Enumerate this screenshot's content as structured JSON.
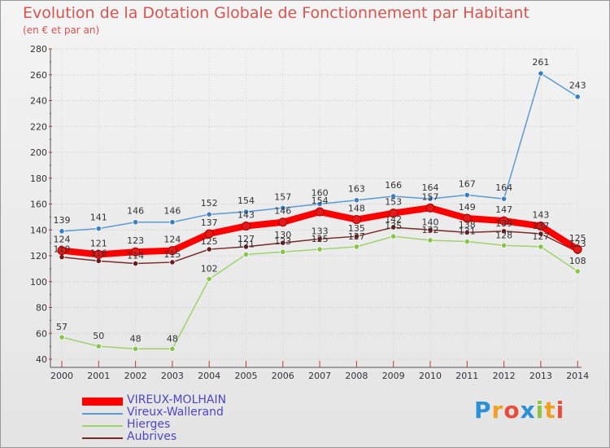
{
  "chart_data": {
    "type": "line",
    "title": "Evolution de la Dotation Globale de Fonctionnement par Habitant",
    "subtitle": "(en € et par an)",
    "xlabel": "",
    "ylabel": "",
    "ylim": [
      40,
      280
    ],
    "yticks": [
      40,
      60,
      80,
      100,
      120,
      140,
      160,
      180,
      200,
      220,
      240,
      260,
      280
    ],
    "x": [
      "2000",
      "2001",
      "2002",
      "2003",
      "2004",
      "2005",
      "2006",
      "2007",
      "2008",
      "2009",
      "2010",
      "2011",
      "2012",
      "2013",
      "2014"
    ],
    "grid": true,
    "legend_position": "bottom-left",
    "series": [
      {
        "name": "Vireux-Wallerand",
        "color": "#5b9bd5",
        "point_color": "#3c7fc0",
        "values": [
          139,
          141,
          146,
          146,
          152,
          154,
          157,
          160,
          163,
          166,
          164,
          167,
          164,
          261,
          243
        ]
      },
      {
        "name": "Hierges",
        "color": "#9ed36a",
        "point_color": "#86c44a",
        "values": [
          57,
          50,
          48,
          48,
          102,
          121,
          123,
          125,
          127,
          135,
          132,
          131,
          128,
          127,
          108
        ]
      },
      {
        "name": "Aubrives",
        "color": "#7a2a2a",
        "point_color": "#6a1c1c",
        "values": [
          119,
          116,
          114,
          115,
          125,
          127,
          130,
          133,
          135,
          142,
          140,
          138,
          139,
          137,
          123
        ]
      },
      {
        "name": "VIREUX-MOLHAIN",
        "color": "#ff0000",
        "point_color": "#e41a1a",
        "values": [
          124,
          121,
          123,
          124,
          137,
          143,
          146,
          154,
          148,
          153,
          157,
          149,
          147,
          143,
          125
        ]
      }
    ],
    "legend_order": [
      "VIREUX-MOLHAIN",
      "Vireux-Wallerand",
      "Hierges",
      "Aubrives"
    ]
  },
  "brand": {
    "text": "Proxiti",
    "letters": [
      "P",
      "r",
      "o",
      "x",
      "i",
      "t",
      "i"
    ],
    "colors": [
      "#2a8fd6",
      "#f0a020",
      "#e84c3d",
      "#2a8fd6",
      "#8cc63f",
      "#f0a020",
      "#e84c3d"
    ]
  }
}
